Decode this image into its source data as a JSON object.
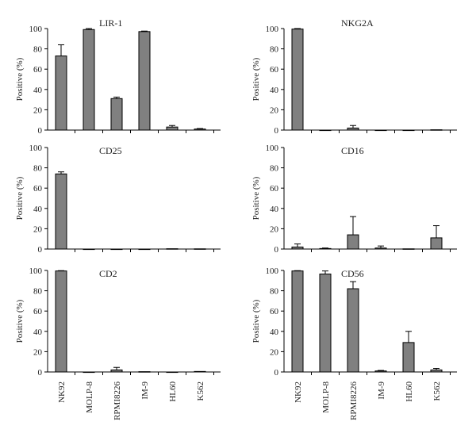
{
  "chart_data": [
    {
      "type": "bar",
      "title": "LIR-1",
      "ylabel": "Positive (%)",
      "ylim": [
        0,
        100
      ],
      "yticks": [
        0,
        20,
        40,
        60,
        80,
        100
      ],
      "categories": [
        "NK92",
        "MOLP-8",
        "RPMI8226",
        "IM-9",
        "HL60",
        "K562"
      ],
      "values": [
        73,
        99,
        31,
        97,
        3,
        1
      ],
      "errors": [
        11,
        1,
        1.5,
        0.5,
        1.5,
        0.5
      ]
    },
    {
      "type": "bar",
      "title": "NKG2A",
      "ylabel": "Positive (%)",
      "ylim": [
        0,
        100
      ],
      "yticks": [
        0,
        20,
        40,
        60,
        80,
        100
      ],
      "categories": [
        "NK92",
        "MOLP-8",
        "RPMI8226",
        "IM-9",
        "HL60",
        "K562"
      ],
      "values": [
        99.5,
        0,
        2,
        0,
        0,
        0.3
      ],
      "errors": [
        0.5,
        0,
        2.5,
        0,
        0,
        0
      ]
    },
    {
      "type": "bar",
      "title": "CD25",
      "ylabel": "Positive (%)",
      "ylim": [
        0,
        100
      ],
      "yticks": [
        0,
        20,
        40,
        60,
        80,
        100
      ],
      "categories": [
        "NK92",
        "MOLP-8",
        "RPMI8226",
        "IM-9",
        "HL60",
        "K562"
      ],
      "values": [
        74,
        0,
        0,
        0,
        0.3,
        0.2
      ],
      "errors": [
        2,
        0,
        0,
        0,
        0,
        0
      ]
    },
    {
      "type": "bar",
      "title": "CD16",
      "ylabel": "Positive (%)",
      "ylim": [
        0,
        100
      ],
      "yticks": [
        0,
        20,
        40,
        60,
        80,
        100
      ],
      "categories": [
        "NK92",
        "MOLP-8",
        "RPMI8226",
        "IM-9",
        "HL60",
        "K562"
      ],
      "values": [
        2,
        0.5,
        14,
        1,
        0.2,
        11
      ],
      "errors": [
        3,
        0.5,
        18,
        2,
        0,
        12
      ]
    },
    {
      "type": "bar",
      "title": "CD2",
      "ylabel": "Positive (%)",
      "ylim": [
        0,
        100
      ],
      "yticks": [
        0,
        20,
        40,
        60,
        80,
        100
      ],
      "categories": [
        "NK92",
        "MOLP-8",
        "RPMI8226",
        "IM-9",
        "HL60",
        "K562"
      ],
      "values": [
        99.5,
        0,
        2,
        0.3,
        0,
        0.5
      ],
      "errors": [
        0.3,
        0,
        2.5,
        0,
        0,
        0
      ]
    },
    {
      "type": "bar",
      "title": "CD56",
      "ylabel": "Positive (%)",
      "ylim": [
        0,
        100
      ],
      "yticks": [
        0,
        20,
        40,
        60,
        80,
        100
      ],
      "categories": [
        "NK92",
        "MOLP-8",
        "RPMI8226",
        "IM-9",
        "HL60",
        "K562"
      ],
      "values": [
        99.5,
        96.5,
        82,
        1,
        29,
        2
      ],
      "errors": [
        0.3,
        3,
        7,
        0.5,
        11,
        1.5
      ]
    }
  ],
  "style": {
    "bar_fill": "#808080",
    "bar_stroke": "#000000",
    "axis_color": "#000000",
    "text_color": "#222222"
  }
}
